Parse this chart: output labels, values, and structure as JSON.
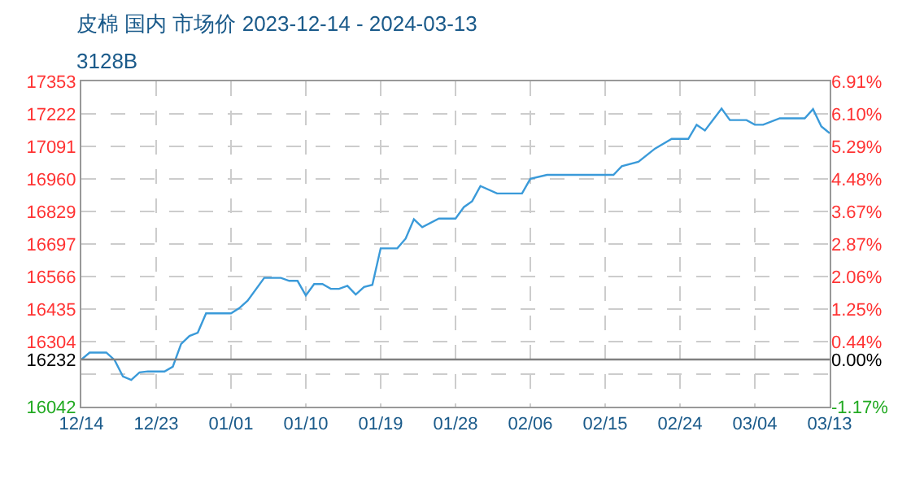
{
  "chart_data": {
    "type": "line",
    "title": "皮棉 国内 市场价 2023-12-14 - 2024-03-13",
    "subtitle": "3128B",
    "x": [
      "2023-12-14",
      "2023-12-15",
      "2023-12-17",
      "2023-12-18",
      "2023-12-19",
      "2023-12-20",
      "2023-12-21",
      "2023-12-22",
      "2023-12-24",
      "2023-12-25",
      "2023-12-26",
      "2023-12-27",
      "2023-12-28",
      "2023-12-29",
      "2024-01-01",
      "2024-01-02",
      "2024-01-03",
      "2024-01-05",
      "2024-01-07",
      "2024-01-08",
      "2024-01-09",
      "2024-01-10",
      "2024-01-11",
      "2024-01-12",
      "2024-01-13",
      "2024-01-14",
      "2024-01-15",
      "2024-01-16",
      "2024-01-17",
      "2024-01-18",
      "2024-01-19",
      "2024-01-21",
      "2024-01-22",
      "2024-01-23",
      "2024-01-24",
      "2024-01-26",
      "2024-01-28",
      "2024-01-29",
      "2024-01-30",
      "2024-01-31",
      "2024-02-02",
      "2024-02-05",
      "2024-02-06",
      "2024-02-08",
      "2024-02-16",
      "2024-02-17",
      "2024-02-19",
      "2024-02-21",
      "2024-02-23",
      "2024-02-25",
      "2024-02-26",
      "2024-02-27",
      "2024-02-29",
      "2024-03-01",
      "2024-03-03",
      "2024-03-04",
      "2024-03-05",
      "2024-03-07",
      "2024-03-10",
      "2024-03-11",
      "2024-03-12",
      "2024-03-13"
    ],
    "series": [
      {
        "color": "#3a9ad9",
        "values": [
          16232,
          16260,
          16260,
          16230,
          16164,
          16150,
          16180,
          16184,
          16184,
          16203,
          16295,
          16327,
          16340,
          16418,
          16418,
          16439,
          16469,
          16561,
          16561,
          16549,
          16549,
          16490,
          16536,
          16536,
          16517,
          16517,
          16529,
          16494,
          16524,
          16533,
          16680,
          16680,
          16719,
          16797,
          16765,
          16800,
          16800,
          16846,
          16870,
          16931,
          16901,
          16901,
          16960,
          16976,
          16976,
          17011,
          17029,
          17082,
          17121,
          17121,
          17178,
          17155,
          17243,
          17197,
          17197,
          17178,
          17178,
          17204,
          17204,
          17241,
          17171,
          17144
        ]
      }
    ],
    "xlim": [
      "2023-12-14",
      "2024-03-13"
    ],
    "xticks": [
      {
        "value": "2023-12-14",
        "label": "12/14"
      },
      {
        "value": "2023-12-23",
        "label": "12/23"
      },
      {
        "value": "2024-01-01",
        "label": "01/01"
      },
      {
        "value": "2024-01-10",
        "label": "01/10"
      },
      {
        "value": "2024-01-19",
        "label": "01/19"
      },
      {
        "value": "2024-01-28",
        "label": "01/28"
      },
      {
        "value": "2024-02-06",
        "label": "02/06"
      },
      {
        "value": "2024-02-15",
        "label": "02/15"
      },
      {
        "value": "2024-02-24",
        "label": "02/24"
      },
      {
        "value": "2024-03-04",
        "label": "03/04"
      },
      {
        "value": "2024-03-13",
        "label": "03/13"
      }
    ],
    "ylim": [
      16042,
      17353
    ],
    "yticks": [
      16042,
      {
        "value": 16173,
        "label": null
      },
      16232,
      16304,
      16435,
      16566,
      16697,
      16829,
      16960,
      17091,
      17222,
      17353
    ],
    "y2lim": [
      -1.17,
      6.91
    ],
    "y2ticks": [
      {
        "value": -1.17,
        "label": "-1.17%"
      },
      {
        "value": 0,
        "label": "0.00%"
      },
      {
        "value": 0.44,
        "label": "0.44%"
      },
      {
        "value": 1.25,
        "label": "1.25%"
      },
      {
        "value": 2.06,
        "label": "2.06%"
      },
      {
        "value": 2.87,
        "label": "2.87%"
      },
      {
        "value": 3.67,
        "label": "3.67%"
      },
      {
        "value": 4.48,
        "label": "4.48%"
      },
      {
        "value": 5.29,
        "label": "5.29%"
      },
      {
        "value": 6.1,
        "label": "6.10%"
      },
      {
        "value": 6.91,
        "label": "6.91%"
      }
    ],
    "ref_lines": [
      {
        "axis": "y",
        "value": 16232,
        "color": "#808080"
      }
    ],
    "grid": true
  }
}
